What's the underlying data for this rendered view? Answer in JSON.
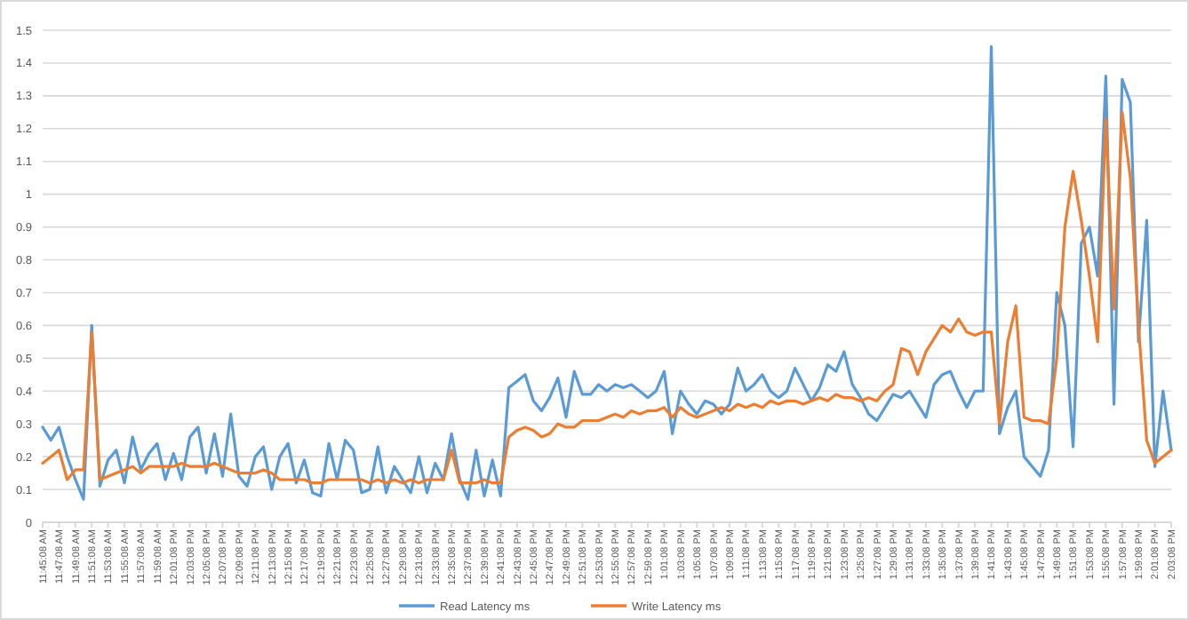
{
  "chart_data": {
    "type": "line",
    "grid": "y",
    "legend": "bottom",
    "line_style": "solid",
    "marker": "none",
    "ylim": [
      0,
      1.5
    ],
    "yticks": [
      0,
      0.1,
      0.2,
      0.3,
      0.4,
      0.5,
      0.6,
      0.7,
      0.8,
      0.9,
      1,
      1.1,
      1.2,
      1.3,
      1.4,
      1.5
    ],
    "xlim": [
      11.7522,
      14.0522
    ],
    "xticks": [
      {
        "value": 11.7522,
        "label": "11:45:08 AM"
      },
      {
        "value": 11.7855,
        "label": "11:47:08 AM"
      },
      {
        "value": 11.8189,
        "label": "11:49:08 AM"
      },
      {
        "value": 11.8522,
        "label": "11:51:08 AM"
      },
      {
        "value": 11.8855,
        "label": "11:53:08 AM"
      },
      {
        "value": 11.9189,
        "label": "11:55:08 AM"
      },
      {
        "value": 11.9522,
        "label": "11:57:08 AM"
      },
      {
        "value": 11.9855,
        "label": "11:59:08 AM"
      },
      {
        "value": 12.0189,
        "label": "12:01:08 PM"
      },
      {
        "value": 12.0522,
        "label": "12:03:08 PM"
      },
      {
        "value": 12.0855,
        "label": "12:05:08 PM"
      },
      {
        "value": 12.1189,
        "label": "12:07:08 PM"
      },
      {
        "value": 12.1522,
        "label": "12:09:08 PM"
      },
      {
        "value": 12.1855,
        "label": "12:11:08 PM"
      },
      {
        "value": 12.2189,
        "label": "12:13:08 PM"
      },
      {
        "value": 12.2522,
        "label": "12:15:08 PM"
      },
      {
        "value": 12.2855,
        "label": "12:17:08 PM"
      },
      {
        "value": 12.3189,
        "label": "12:19:08 PM"
      },
      {
        "value": 12.3522,
        "label": "12:21:08 PM"
      },
      {
        "value": 12.3855,
        "label": "12:23:08 PM"
      },
      {
        "value": 12.4189,
        "label": "12:25:08 PM"
      },
      {
        "value": 12.4522,
        "label": "12:27:08 PM"
      },
      {
        "value": 12.4855,
        "label": "12:29:08 PM"
      },
      {
        "value": 12.5189,
        "label": "12:31:08 PM"
      },
      {
        "value": 12.5522,
        "label": "12:33:08 PM"
      },
      {
        "value": 12.5855,
        "label": "12:35:08 PM"
      },
      {
        "value": 12.6189,
        "label": "12:37:08 PM"
      },
      {
        "value": 12.6522,
        "label": "12:39:08 PM"
      },
      {
        "value": 12.6855,
        "label": "12:41:08 PM"
      },
      {
        "value": 12.7189,
        "label": "12:43:08 PM"
      },
      {
        "value": 12.7522,
        "label": "12:45:08 PM"
      },
      {
        "value": 12.7855,
        "label": "12:47:08 PM"
      },
      {
        "value": 12.8189,
        "label": "12:49:08 PM"
      },
      {
        "value": 12.8522,
        "label": "12:51:08 PM"
      },
      {
        "value": 12.8855,
        "label": "12:53:08 PM"
      },
      {
        "value": 12.9189,
        "label": "12:55:08 PM"
      },
      {
        "value": 12.9522,
        "label": "12:57:08 PM"
      },
      {
        "value": 12.9855,
        "label": "12:59:08 PM"
      },
      {
        "value": 13.0189,
        "label": "1:01:08 PM"
      },
      {
        "value": 13.0522,
        "label": "1:03:08 PM"
      },
      {
        "value": 13.0855,
        "label": "1:05:08 PM"
      },
      {
        "value": 13.1189,
        "label": "1:07:08 PM"
      },
      {
        "value": 13.1522,
        "label": "1:09:08 PM"
      },
      {
        "value": 13.1855,
        "label": "1:11:08 PM"
      },
      {
        "value": 13.2189,
        "label": "1:13:08 PM"
      },
      {
        "value": 13.2522,
        "label": "1:15:08 PM"
      },
      {
        "value": 13.2855,
        "label": "1:17:08 PM"
      },
      {
        "value": 13.3189,
        "label": "1:19:08 PM"
      },
      {
        "value": 13.3522,
        "label": "1:21:08 PM"
      },
      {
        "value": 13.3855,
        "label": "1:23:08 PM"
      },
      {
        "value": 13.4189,
        "label": "1:25:08 PM"
      },
      {
        "value": 13.4522,
        "label": "1:27:08 PM"
      },
      {
        "value": 13.4855,
        "label": "1:29:08 PM"
      },
      {
        "value": 13.5189,
        "label": "1:31:08 PM"
      },
      {
        "value": 13.5522,
        "label": "1:33:08 PM"
      },
      {
        "value": 13.5855,
        "label": "1:35:08 PM"
      },
      {
        "value": 13.6189,
        "label": "1:37:08 PM"
      },
      {
        "value": 13.6522,
        "label": "1:39:08 PM"
      },
      {
        "value": 13.6855,
        "label": "1:41:08 PM"
      },
      {
        "value": 13.7189,
        "label": "1:43:08 PM"
      },
      {
        "value": 13.7522,
        "label": "1:45:08 PM"
      },
      {
        "value": 13.7855,
        "label": "1:47:08 PM"
      },
      {
        "value": 13.8189,
        "label": "1:49:08 PM"
      },
      {
        "value": 13.8522,
        "label": "1:51:08 PM"
      },
      {
        "value": 13.8855,
        "label": "1:53:08 PM"
      },
      {
        "value": 13.9189,
        "label": "1:55:08 PM"
      },
      {
        "value": 13.9522,
        "label": "1:57:08 PM"
      },
      {
        "value": 13.9855,
        "label": "1:59:08 PM"
      },
      {
        "value": 14.0189,
        "label": "2:01:08 PM"
      },
      {
        "value": 14.0522,
        "label": "2:03:08 PM"
      }
    ],
    "x": [
      11.7522,
      11.7689,
      11.7855,
      11.8022,
      11.8189,
      11.8355,
      11.8522,
      11.8689,
      11.8855,
      11.9022,
      11.9189,
      11.9355,
      11.9522,
      11.9689,
      11.9855,
      12.0022,
      12.0189,
      12.0355,
      12.0522,
      12.0689,
      12.0855,
      12.1022,
      12.1189,
      12.1355,
      12.1522,
      12.1689,
      12.1855,
      12.2022,
      12.2189,
      12.2355,
      12.2522,
      12.2689,
      12.2855,
      12.3022,
      12.3189,
      12.3355,
      12.3522,
      12.3689,
      12.3855,
      12.4022,
      12.4189,
      12.4355,
      12.4522,
      12.4689,
      12.4855,
      12.5022,
      12.5189,
      12.5355,
      12.5522,
      12.5689,
      12.5855,
      12.6022,
      12.6189,
      12.6355,
      12.6522,
      12.6689,
      12.6855,
      12.7022,
      12.7189,
      12.7355,
      12.7522,
      12.7689,
      12.7855,
      12.8022,
      12.8189,
      12.8355,
      12.8522,
      12.8689,
      12.8855,
      12.9022,
      12.9189,
      12.9355,
      12.9522,
      12.9689,
      12.9855,
      13.0022,
      13.0189,
      13.0355,
      13.0522,
      13.0689,
      13.0855,
      13.1022,
      13.1189,
      13.1355,
      13.1522,
      13.1689,
      13.1855,
      13.2022,
      13.2189,
      13.2355,
      13.2522,
      13.2689,
      13.2855,
      13.3022,
      13.3189,
      13.3355,
      13.3522,
      13.3689,
      13.3855,
      13.4022,
      13.4189,
      13.4355,
      13.4522,
      13.4689,
      13.4855,
      13.5022,
      13.5189,
      13.5355,
      13.5522,
      13.5689,
      13.5855,
      13.6022,
      13.6189,
      13.6355,
      13.6522,
      13.6689,
      13.6855,
      13.7022,
      13.7189,
      13.7355,
      13.7522,
      13.7689,
      13.7855,
      13.8022,
      13.8189,
      13.8355,
      13.8522,
      13.8689,
      13.8855,
      13.9022,
      13.9189,
      13.9355,
      13.9522,
      13.9689,
      13.9855,
      14.0022,
      14.0189,
      14.0355,
      14.0522
    ],
    "series": [
      {
        "name": "Read Latency ms",
        "color": "#5b9bd5",
        "values": [
          0.29,
          0.25,
          0.29,
          0.2,
          0.13,
          0.07,
          0.6,
          0.11,
          0.19,
          0.22,
          0.12,
          0.26,
          0.16,
          0.21,
          0.24,
          0.13,
          0.21,
          0.13,
          0.26,
          0.29,
          0.15,
          0.27,
          0.14,
          0.33,
          0.14,
          0.11,
          0.2,
          0.23,
          0.1,
          0.2,
          0.24,
          0.12,
          0.19,
          0.09,
          0.08,
          0.24,
          0.13,
          0.25,
          0.22,
          0.09,
          0.1,
          0.23,
          0.09,
          0.17,
          0.13,
          0.09,
          0.2,
          0.09,
          0.18,
          0.13,
          0.27,
          0.13,
          0.07,
          0.22,
          0.08,
          0.19,
          0.08,
          0.41,
          0.43,
          0.45,
          0.37,
          0.34,
          0.38,
          0.44,
          0.32,
          0.46,
          0.39,
          0.39,
          0.42,
          0.4,
          0.42,
          0.41,
          0.42,
          0.4,
          0.38,
          0.4,
          0.46,
          0.27,
          0.4,
          0.36,
          0.33,
          0.37,
          0.36,
          0.33,
          0.36,
          0.47,
          0.4,
          0.42,
          0.45,
          0.4,
          0.38,
          0.4,
          0.47,
          0.42,
          0.37,
          0.41,
          0.48,
          0.46,
          0.52,
          0.42,
          0.38,
          0.33,
          0.31,
          0.35,
          0.39,
          0.38,
          0.4,
          0.36,
          0.32,
          0.42,
          0.45,
          0.46,
          0.4,
          0.35,
          0.4,
          0.4,
          1.45,
          0.27,
          0.35,
          0.4,
          0.2,
          0.17,
          0.14,
          0.22,
          0.7,
          0.6,
          0.23,
          0.85,
          0.9,
          0.75,
          1.36,
          0.36,
          1.35,
          1.28,
          0.55,
          0.92,
          0.17,
          0.4,
          0.22
        ]
      },
      {
        "name": "Write Latency ms",
        "color": "#ed7d31",
        "values": [
          0.18,
          0.2,
          0.22,
          0.13,
          0.16,
          0.16,
          0.58,
          0.13,
          0.14,
          0.15,
          0.16,
          0.17,
          0.15,
          0.17,
          0.17,
          0.17,
          0.17,
          0.18,
          0.17,
          0.17,
          0.17,
          0.18,
          0.17,
          0.16,
          0.15,
          0.15,
          0.15,
          0.16,
          0.15,
          0.13,
          0.13,
          0.13,
          0.13,
          0.12,
          0.12,
          0.13,
          0.13,
          0.13,
          0.13,
          0.13,
          0.12,
          0.13,
          0.12,
          0.13,
          0.12,
          0.13,
          0.12,
          0.13,
          0.13,
          0.13,
          0.22,
          0.12,
          0.12,
          0.12,
          0.13,
          0.12,
          0.12,
          0.26,
          0.28,
          0.29,
          0.28,
          0.26,
          0.27,
          0.3,
          0.29,
          0.29,
          0.31,
          0.31,
          0.31,
          0.32,
          0.33,
          0.32,
          0.34,
          0.33,
          0.34,
          0.34,
          0.35,
          0.32,
          0.35,
          0.33,
          0.32,
          0.33,
          0.34,
          0.35,
          0.34,
          0.36,
          0.35,
          0.36,
          0.35,
          0.37,
          0.36,
          0.37,
          0.37,
          0.36,
          0.37,
          0.38,
          0.37,
          0.39,
          0.38,
          0.38,
          0.37,
          0.38,
          0.37,
          0.4,
          0.42,
          0.53,
          0.52,
          0.45,
          0.52,
          0.56,
          0.6,
          0.58,
          0.62,
          0.58,
          0.57,
          0.58,
          0.58,
          0.3,
          0.55,
          0.66,
          0.32,
          0.31,
          0.31,
          0.3,
          0.5,
          0.9,
          1.07,
          0.92,
          0.75,
          0.55,
          1.23,
          0.65,
          1.25,
          1.05,
          0.6,
          0.25,
          0.18,
          0.2,
          0.22
        ]
      }
    ]
  }
}
